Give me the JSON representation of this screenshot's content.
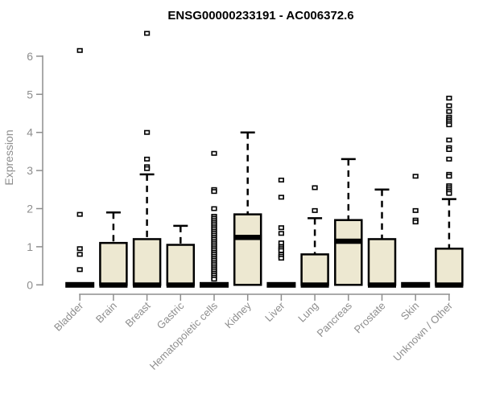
{
  "window": {
    "title": "ENSG00000233191 - AC006372.6"
  },
  "chart_data": {
    "type": "boxplot",
    "title": "ENSG00000233191 - AC006372.6",
    "ylabel": "Expression",
    "ylim": [
      0,
      6.6
    ],
    "yticks": [
      0,
      1,
      2,
      3,
      4,
      5,
      6
    ],
    "grid": false,
    "legend_position": "none",
    "colors": {
      "box_fill": "#EDE8D1",
      "box_stroke": "#000000",
      "median": "#000000",
      "whisker": "#000000",
      "outlier_fill": "#FFFFFF",
      "outlier_stroke": "#000000",
      "axis": "#8E8E8E",
      "title": "#000000"
    },
    "categories": [
      "Bladder",
      "Brain",
      "Breast",
      "Gastric",
      "Hematopoietic cells",
      "Kidney",
      "Liver",
      "Lung",
      "Pancreas",
      "Prostate",
      "Skin",
      "Unknown / Other"
    ],
    "boxes": [
      {
        "category": "Bladder",
        "q1": 0,
        "median": 0,
        "q3": 0,
        "whisker_low": 0,
        "whisker_high": 0,
        "outliers": [
          6.15,
          1.85,
          0.95,
          0.8,
          0.4
        ]
      },
      {
        "category": "Brain",
        "q1": 0,
        "median": 0,
        "q3": 1.1,
        "whisker_low": 0,
        "whisker_high": 1.9,
        "outliers": []
      },
      {
        "category": "Breast",
        "q1": 0,
        "median": 0,
        "q3": 1.2,
        "whisker_low": 0,
        "whisker_high": 2.9,
        "outliers": [
          6.6,
          4.0,
          3.3,
          3.1,
          3.05
        ]
      },
      {
        "category": "Gastric",
        "q1": 0,
        "median": 0,
        "q3": 1.05,
        "whisker_low": 0,
        "whisker_high": 1.55,
        "outliers": []
      },
      {
        "category": "Hematopoietic cells",
        "q1": 0,
        "median": 0,
        "q3": 0,
        "whisker_low": 0,
        "whisker_high": 0,
        "outliers": [
          3.45,
          2.5,
          2.45,
          2.0,
          1.8,
          1.75,
          1.7,
          1.65,
          1.6,
          1.55,
          1.5,
          1.45,
          1.4,
          1.35,
          1.3,
          1.25,
          1.2,
          1.15,
          1.1,
          1.05,
          1.0,
          0.95,
          0.9,
          0.85,
          0.8,
          0.75,
          0.7,
          0.65,
          0.6,
          0.55,
          0.5,
          0.45,
          0.4,
          0.35,
          0.3,
          0.25,
          0.2,
          0.15
        ]
      },
      {
        "category": "Kidney",
        "q1": 0,
        "median": 1.25,
        "q3": 1.85,
        "whisker_low": 0,
        "whisker_high": 4.0,
        "outliers": []
      },
      {
        "category": "Liver",
        "q1": 0,
        "median": 0,
        "q3": 0,
        "whisker_low": 0,
        "whisker_high": 0,
        "outliers": [
          2.75,
          2.3,
          1.5,
          1.35,
          1.1,
          1.0,
          0.95,
          0.9,
          0.8,
          0.75,
          0.7
        ]
      },
      {
        "category": "Lung",
        "q1": 0,
        "median": 0,
        "q3": 0.8,
        "whisker_low": 0,
        "whisker_high": 1.75,
        "outliers": [
          2.55,
          1.95
        ]
      },
      {
        "category": "Pancreas",
        "q1": 0,
        "median": 1.15,
        "q3": 1.7,
        "whisker_low": 0,
        "whisker_high": 3.3,
        "outliers": []
      },
      {
        "category": "Prostate",
        "q1": 0,
        "median": 0,
        "q3": 1.2,
        "whisker_low": 0,
        "whisker_high": 2.5,
        "outliers": []
      },
      {
        "category": "Skin",
        "q1": 0,
        "median": 0,
        "q3": 0,
        "whisker_low": 0,
        "whisker_high": 0,
        "outliers": [
          2.85,
          1.95,
          1.7,
          1.65
        ]
      },
      {
        "category": "Unknown / Other",
        "q1": 0,
        "median": 0,
        "q3": 0.95,
        "whisker_low": 0,
        "whisker_high": 2.25,
        "outliers": [
          4.9,
          4.7,
          4.55,
          4.4,
          4.35,
          4.3,
          4.25,
          4.2,
          3.8,
          3.6,
          3.55,
          3.3,
          2.9,
          2.85,
          2.6,
          2.55,
          2.5,
          2.45,
          2.4
        ]
      }
    ]
  }
}
